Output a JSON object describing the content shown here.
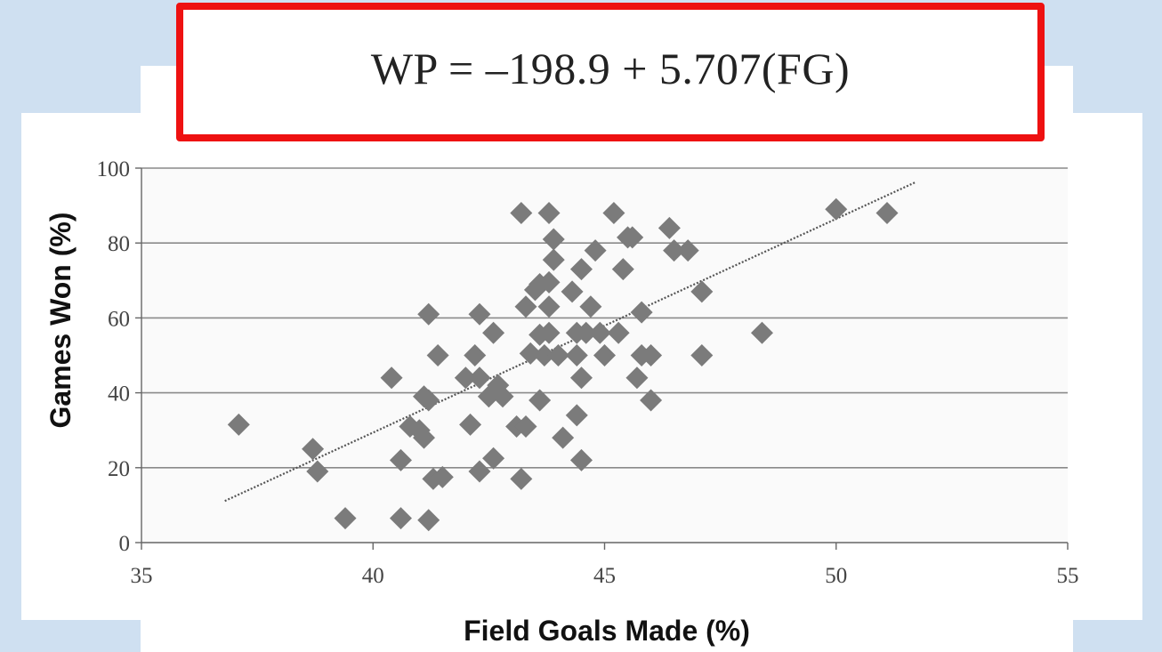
{
  "equation": "WP = –198.9 + 5.707(FG)",
  "colors": {
    "background": "#cfe0f1",
    "equation_border": "#ee1111",
    "marker": "#7b7b7b",
    "gridline": "#8a8a8a",
    "trendline": "#555555"
  },
  "chart_data": {
    "type": "scatter",
    "title": "",
    "xlabel": "Field Goals Made (%)",
    "ylabel": "Games Won (%)",
    "xlim": [
      35,
      55
    ],
    "ylim": [
      0,
      100
    ],
    "xticks": [
      35,
      40,
      45,
      50,
      55
    ],
    "yticks": [
      0,
      20,
      40,
      60,
      80,
      100
    ],
    "grid": "horizontal",
    "legend": "none",
    "marker": "diamond",
    "trendline": {
      "intercept": -198.9,
      "slope": 5.707,
      "x_start": 36.8,
      "x_end": 51.7
    },
    "points": [
      [
        37.1,
        31.5
      ],
      [
        38.7,
        25
      ],
      [
        38.8,
        19
      ],
      [
        39.4,
        6.5
      ],
      [
        40.4,
        44
      ],
      [
        40.6,
        22
      ],
      [
        40.6,
        6.5
      ],
      [
        40.8,
        31
      ],
      [
        41.0,
        30
      ],
      [
        41.1,
        28
      ],
      [
        41.1,
        39
      ],
      [
        41.2,
        38
      ],
      [
        41.2,
        61
      ],
      [
        41.2,
        6
      ],
      [
        41.3,
        17
      ],
      [
        41.4,
        50
      ],
      [
        41.5,
        17.5
      ],
      [
        42.0,
        44
      ],
      [
        42.1,
        31.5
      ],
      [
        42.2,
        50
      ],
      [
        42.3,
        44
      ],
      [
        42.3,
        19
      ],
      [
        42.3,
        61
      ],
      [
        42.5,
        39
      ],
      [
        42.6,
        56
      ],
      [
        42.6,
        22.5
      ],
      [
        42.7,
        42
      ],
      [
        42.8,
        39
      ],
      [
        43.1,
        31
      ],
      [
        43.2,
        88
      ],
      [
        43.2,
        17
      ],
      [
        43.3,
        31
      ],
      [
        43.3,
        63
      ],
      [
        43.4,
        50.5
      ],
      [
        43.5,
        67.5
      ],
      [
        43.6,
        55.5
      ],
      [
        43.6,
        38
      ],
      [
        43.6,
        69
      ],
      [
        43.7,
        50
      ],
      [
        43.8,
        88
      ],
      [
        43.8,
        69.5
      ],
      [
        43.8,
        63
      ],
      [
        43.8,
        56
      ],
      [
        43.9,
        75.5
      ],
      [
        43.9,
        81
      ],
      [
        44.0,
        50
      ],
      [
        44.1,
        28
      ],
      [
        44.3,
        67
      ],
      [
        44.4,
        34
      ],
      [
        44.4,
        56
      ],
      [
        44.4,
        50
      ],
      [
        44.5,
        22
      ],
      [
        44.5,
        73
      ],
      [
        44.5,
        44
      ],
      [
        44.6,
        56
      ],
      [
        44.7,
        63
      ],
      [
        44.8,
        78
      ],
      [
        44.9,
        56
      ],
      [
        45.0,
        50
      ],
      [
        45.2,
        88
      ],
      [
        45.3,
        56
      ],
      [
        45.4,
        73
      ],
      [
        45.5,
        81.5
      ],
      [
        45.6,
        81.5
      ],
      [
        45.7,
        44
      ],
      [
        45.8,
        61.5
      ],
      [
        45.8,
        50
      ],
      [
        46.0,
        38
      ],
      [
        46.0,
        50
      ],
      [
        46.4,
        84
      ],
      [
        46.5,
        78
      ],
      [
        46.8,
        78
      ],
      [
        47.1,
        67
      ],
      [
        47.1,
        50
      ],
      [
        48.4,
        56
      ],
      [
        50.0,
        89
      ],
      [
        51.1,
        88
      ]
    ]
  }
}
